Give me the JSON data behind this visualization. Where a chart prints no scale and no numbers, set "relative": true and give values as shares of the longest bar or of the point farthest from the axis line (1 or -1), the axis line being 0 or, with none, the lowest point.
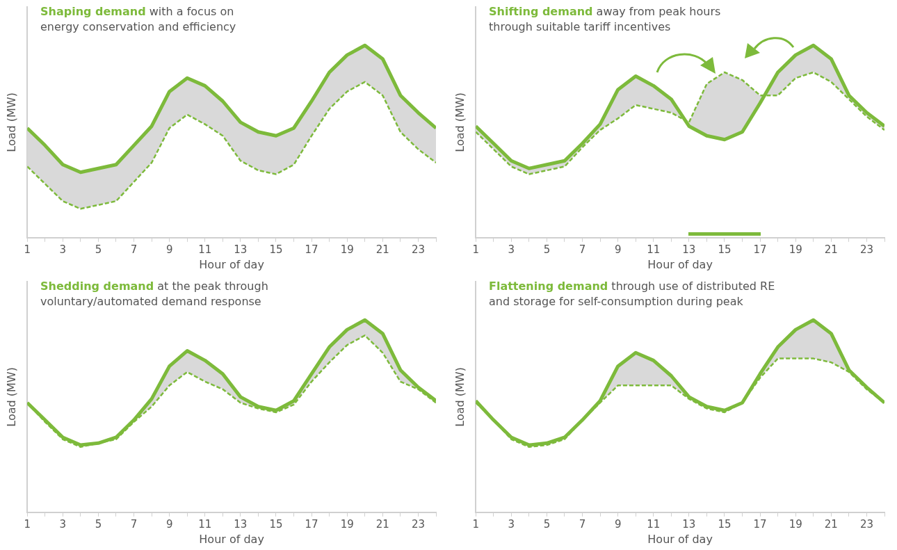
{
  "chart_data": [
    {
      "type": "line",
      "title": "Shaping demand",
      "subtitle": "with a focus on\nenergy conservation and efficiency",
      "xlabel": "Hour of day",
      "ylabel": "Load (MW)",
      "relative": true,
      "grid": false,
      "legend": false,
      "marker": "none",
      "xlim": [
        1,
        24
      ],
      "xticks": [
        1,
        {
          "value": 2,
          "label": null
        },
        3,
        {
          "value": 4,
          "label": null
        },
        5,
        {
          "value": 6,
          "label": null
        },
        7,
        {
          "value": 8,
          "label": null
        },
        9,
        {
          "value": 10,
          "label": null
        },
        11,
        {
          "value": 12,
          "label": null
        },
        13,
        {
          "value": 14,
          "label": null
        },
        15,
        {
          "value": 16,
          "label": null
        },
        17,
        {
          "value": 18,
          "label": null
        },
        19,
        {
          "value": 20,
          "label": null
        },
        21,
        {
          "value": 22,
          "label": null
        },
        23,
        {
          "value": 24,
          "label": null
        }
      ],
      "x": [
        1,
        2,
        3,
        4,
        5,
        6,
        7,
        8,
        9,
        10,
        11,
        12,
        13,
        14,
        15,
        16,
        17,
        18,
        19,
        20,
        21,
        22,
        23,
        24
      ],
      "series": [
        {
          "color": "#7dba3b",
          "line_style": "solid",
          "values": [
            0.57,
            0.48,
            0.38,
            0.34,
            0.36,
            0.38,
            0.48,
            0.58,
            0.76,
            0.83,
            0.79,
            0.71,
            0.6,
            0.55,
            0.53,
            0.57,
            0.71,
            0.86,
            0.95,
            1,
            0.93,
            0.74,
            0.65,
            0.57
          ],
          "upper": [
            0.57,
            0.48,
            0.38,
            0.34,
            0.36,
            0.38,
            0.48,
            0.58,
            0.76,
            0.83,
            0.79,
            0.71,
            0.6,
            0.55,
            0.53,
            0.57,
            0.71,
            0.86,
            0.95,
            1,
            0.93,
            0.74,
            0.65,
            0.57
          ],
          "lower": [
            0.37,
            0.28,
            0.19,
            0.15,
            0.17,
            0.19,
            0.29,
            0.39,
            0.57,
            0.64,
            0.59,
            0.53,
            0.4,
            0.35,
            0.33,
            0.38,
            0.53,
            0.67,
            0.76,
            0.81,
            0.74,
            0.55,
            0.46,
            0.39
          ]
        },
        {
          "color": "#7dba3b",
          "line_style": "dashed",
          "values": [
            0.37,
            0.28,
            0.19,
            0.15,
            0.17,
            0.19,
            0.29,
            0.39,
            0.57,
            0.64,
            0.59,
            0.53,
            0.4,
            0.35,
            0.33,
            0.38,
            0.53,
            0.67,
            0.76,
            0.81,
            0.74,
            0.55,
            0.46,
            0.39
          ]
        }
      ]
    },
    {
      "type": "line",
      "title": "Shifting demand",
      "subtitle": "away from peak hours\nthrough suitable tariff incentives",
      "xlabel": "Hour of day",
      "ylabel": "Load (MW)",
      "relative": true,
      "grid": false,
      "legend": false,
      "marker": "none",
      "xlim": [
        1,
        24
      ],
      "xticks": [
        1,
        {
          "value": 2,
          "label": null
        },
        3,
        {
          "value": 4,
          "label": null
        },
        5,
        {
          "value": 6,
          "label": null
        },
        7,
        {
          "value": 8,
          "label": null
        },
        9,
        {
          "value": 10,
          "label": null
        },
        11,
        {
          "value": 12,
          "label": null
        },
        13,
        {
          "value": 14,
          "label": null
        },
        15,
        {
          "value": 16,
          "label": null
        },
        17,
        {
          "value": 18,
          "label": null
        },
        19,
        {
          "value": 20,
          "label": null
        },
        21,
        {
          "value": 22,
          "label": null
        },
        23,
        {
          "value": 24,
          "label": null
        }
      ],
      "x": [
        1,
        2,
        3,
        4,
        5,
        6,
        7,
        8,
        9,
        10,
        11,
        12,
        13,
        14,
        15,
        16,
        17,
        18,
        19,
        20,
        21,
        22,
        23,
        24
      ],
      "series": [
        {
          "color": "#7dba3b",
          "line_style": "solid",
          "values": [
            0.58,
            0.49,
            0.4,
            0.36,
            0.38,
            0.4,
            0.49,
            0.59,
            0.77,
            0.84,
            0.79,
            0.72,
            0.58,
            0.53,
            0.51,
            0.55,
            0.7,
            0.86,
            0.95,
            1,
            0.93,
            0.74,
            0.65,
            0.58
          ],
          "upper": [
            0.58,
            0.49,
            0.4,
            0.36,
            0.38,
            0.4,
            0.49,
            0.59,
            0.77,
            0.84,
            0.79,
            0.72,
            0.58,
            0.53,
            0.51,
            0.55,
            0.7,
            0.86,
            0.95,
            1,
            0.93,
            0.74,
            0.65,
            0.58
          ],
          "lower": [
            0.55,
            0.46,
            0.37,
            0.33,
            0.35,
            0.37,
            0.47,
            0.56,
            0.62,
            0.69,
            0.67,
            0.65,
            0.6,
            0.8,
            0.86,
            0.82,
            0.74,
            0.74,
            0.83,
            0.86,
            0.81,
            0.72,
            0.63,
            0.56
          ]
        },
        {
          "color": "#7dba3b",
          "line_style": "dashed",
          "values": [
            0.55,
            0.46,
            0.37,
            0.33,
            0.35,
            0.37,
            0.47,
            0.56,
            0.62,
            0.69,
            0.67,
            0.65,
            0.6,
            0.8,
            0.86,
            0.82,
            0.74,
            0.74,
            0.83,
            0.86,
            0.81,
            0.72,
            0.63,
            0.56
          ]
        }
      ]
    },
    {
      "type": "line",
      "title": "Shedding demand",
      "subtitle": "at the peak through\nvoluntary/automated demand response",
      "xlabel": "Hour of day",
      "ylabel": "Load (MW)",
      "relative": true,
      "grid": false,
      "legend": false,
      "marker": "none",
      "xlim": [
        1,
        24
      ],
      "xticks": [
        1,
        {
          "value": 2,
          "label": null
        },
        3,
        {
          "value": 4,
          "label": null
        },
        5,
        {
          "value": 6,
          "label": null
        },
        7,
        {
          "value": 8,
          "label": null
        },
        9,
        {
          "value": 10,
          "label": null
        },
        11,
        {
          "value": 12,
          "label": null
        },
        13,
        {
          "value": 14,
          "label": null
        },
        15,
        {
          "value": 16,
          "label": null
        },
        17,
        {
          "value": 18,
          "label": null
        },
        19,
        {
          "value": 20,
          "label": null
        },
        21,
        {
          "value": 22,
          "label": null
        },
        23,
        {
          "value": 24,
          "label": null
        }
      ],
      "x": [
        1,
        2,
        3,
        4,
        5,
        6,
        7,
        8,
        9,
        10,
        11,
        12,
        13,
        14,
        15,
        16,
        17,
        18,
        19,
        20,
        21,
        22,
        23,
        24
      ],
      "series": [
        {
          "color": "#7dba3b",
          "line_style": "solid",
          "values": [
            0.57,
            0.48,
            0.39,
            0.35,
            0.36,
            0.39,
            0.48,
            0.59,
            0.76,
            0.84,
            0.79,
            0.72,
            0.6,
            0.55,
            0.53,
            0.58,
            0.72,
            0.86,
            0.95,
            1,
            0.93,
            0.74,
            0.65,
            0.58
          ],
          "upper": [
            0.57,
            0.48,
            0.39,
            0.35,
            0.36,
            0.39,
            0.48,
            0.59,
            0.76,
            0.84,
            0.79,
            0.72,
            0.6,
            0.55,
            0.53,
            0.58,
            0.72,
            0.86,
            0.95,
            1,
            0.93,
            0.74,
            0.65,
            0.58
          ],
          "lower": [
            0.57,
            0.47,
            0.38,
            0.34,
            0.36,
            0.38,
            0.47,
            0.55,
            0.66,
            0.73,
            0.68,
            0.64,
            0.57,
            0.54,
            0.52,
            0.56,
            0.68,
            0.78,
            0.87,
            0.92,
            0.83,
            0.68,
            0.64,
            0.57
          ]
        },
        {
          "color": "#7dba3b",
          "line_style": "dashed",
          "values": [
            0.57,
            0.47,
            0.38,
            0.34,
            0.36,
            0.38,
            0.47,
            0.55,
            0.66,
            0.73,
            0.68,
            0.64,
            0.57,
            0.54,
            0.52,
            0.56,
            0.68,
            0.78,
            0.87,
            0.92,
            0.83,
            0.68,
            0.64,
            0.57
          ]
        }
      ]
    },
    {
      "type": "line",
      "title": "Flattening demand",
      "subtitle": "through use of distributed RE\nand storage for self-consumption during peak",
      "xlabel": "Hour of day",
      "ylabel": "Load (MW)",
      "relative": true,
      "grid": false,
      "legend": false,
      "marker": "none",
      "xlim": [
        1,
        24
      ],
      "xticks": [
        1,
        {
          "value": 2,
          "label": null
        },
        3,
        {
          "value": 4,
          "label": null
        },
        5,
        {
          "value": 6,
          "label": null
        },
        7,
        {
          "value": 8,
          "label": null
        },
        9,
        {
          "value": 10,
          "label": null
        },
        11,
        {
          "value": 12,
          "label": null
        },
        13,
        {
          "value": 14,
          "label": null
        },
        15,
        {
          "value": 16,
          "label": null
        },
        17,
        {
          "value": 18,
          "label": null
        },
        19,
        {
          "value": 20,
          "label": null
        },
        21,
        {
          "value": 22,
          "label": null
        },
        23,
        {
          "value": 24,
          "label": null
        }
      ],
      "x": [
        1,
        2,
        3,
        4,
        5,
        6,
        7,
        8,
        9,
        10,
        11,
        12,
        13,
        14,
        15,
        16,
        17,
        18,
        19,
        20,
        21,
        22,
        23,
        24
      ],
      "series": [
        {
          "color": "#7dba3b",
          "line_style": "solid",
          "values": [
            0.58,
            0.48,
            0.39,
            0.35,
            0.36,
            0.39,
            0.48,
            0.58,
            0.76,
            0.83,
            0.79,
            0.71,
            0.6,
            0.55,
            0.53,
            0.57,
            0.72,
            0.86,
            0.95,
            1,
            0.93,
            0.74,
            0.65,
            0.57
          ],
          "upper": [
            0.58,
            0.48,
            0.39,
            0.35,
            0.36,
            0.39,
            0.48,
            0.58,
            0.76,
            0.83,
            0.79,
            0.71,
            0.6,
            0.55,
            0.53,
            0.57,
            0.72,
            0.86,
            0.95,
            1,
            0.93,
            0.74,
            0.65,
            0.57
          ],
          "lower": [
            0.57,
            0.48,
            0.38,
            0.34,
            0.35,
            0.38,
            0.48,
            0.57,
            0.66,
            0.66,
            0.66,
            0.66,
            0.59,
            0.54,
            0.52,
            0.57,
            0.7,
            0.8,
            0.8,
            0.8,
            0.78,
            0.73,
            0.64,
            0.57
          ]
        },
        {
          "color": "#7dba3b",
          "line_style": "dashed",
          "values": [
            0.57,
            0.48,
            0.38,
            0.34,
            0.35,
            0.38,
            0.48,
            0.57,
            0.66,
            0.66,
            0.66,
            0.66,
            0.59,
            0.54,
            0.52,
            0.57,
            0.7,
            0.8,
            0.8,
            0.8,
            0.78,
            0.73,
            0.64,
            0.57
          ]
        }
      ]
    }
  ]
}
